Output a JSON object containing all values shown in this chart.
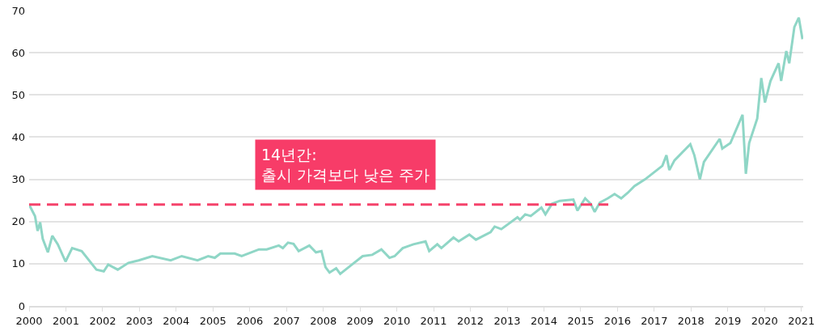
{
  "chart_data": {
    "type": "line",
    "xlim": [
      2000,
      2021.05
    ],
    "xticks": [
      2000,
      2001,
      2002,
      2003,
      2004,
      2005,
      2006,
      2007,
      2008,
      2009,
      2010,
      2011,
      2012,
      2013,
      2014,
      2015,
      2016,
      2017,
      2018,
      2019,
      2020,
      2021
    ],
    "ylim": [
      0,
      70
    ],
    "yticks": [
      0,
      10,
      20,
      30,
      40,
      50,
      60,
      70
    ],
    "grid": "y",
    "annotations": [
      "14년간:\n출시 가격보다 낮은 주가"
    ],
    "series": [
      {
        "color": "#8fd6c6",
        "line_style": "solid",
        "x": [
          2000,
          2000.16,
          2000.23,
          2000.3,
          2000.37,
          2000.51,
          2000.63,
          2000.78,
          2000.99,
          2001.17,
          2001.43,
          2001.83,
          2002.03,
          2002.15,
          2002.41,
          2002.7,
          2002.98,
          2003.35,
          2003.85,
          2004.15,
          2004.58,
          2004.87,
          2005.05,
          2005.2,
          2005.59,
          2005.78,
          2006.25,
          2006.46,
          2006.79,
          2006.9,
          2007.04,
          2007.19,
          2007.33,
          2007.62,
          2007.8,
          2007.95,
          2008.06,
          2008.17,
          2008.35,
          2008.46,
          2008.78,
          2009.07,
          2009.33,
          2009.58,
          2009.8,
          2009.94,
          2010.16,
          2010.45,
          2010.78,
          2010.88,
          2011.1,
          2011.21,
          2011.54,
          2011.68,
          2011.97,
          2012.15,
          2012.55,
          2012.66,
          2012.84,
          2013.28,
          2013.35,
          2013.49,
          2013.64,
          2013.93,
          2014.04,
          2014.22,
          2014.43,
          2014.8,
          2014.91,
          2015.12,
          2015.27,
          2015.38,
          2015.52,
          2015.74,
          2015.92,
          2016.1,
          2016.28,
          2016.46,
          2016.75,
          2017.22,
          2017.33,
          2017.41,
          2017.55,
          2017.98,
          2018.09,
          2018.24,
          2018.35,
          2018.78,
          2018.85,
          2019.07,
          2019.4,
          2019.49,
          2019.58,
          2019.8,
          2019.91,
          2020.01,
          2020.16,
          2020.38,
          2020.45,
          2020.59,
          2020.67,
          2020.81,
          2020.93,
          2021.03
        ],
        "values": [
          24,
          21.3,
          17.8,
          19.8,
          15.9,
          12.7,
          16.6,
          14.6,
          10.5,
          13.7,
          13,
          8.6,
          8.2,
          9.8,
          8.6,
          10.2,
          10.8,
          11.8,
          10.8,
          11.8,
          10.8,
          11.8,
          11.4,
          12.4,
          12.4,
          11.8,
          13.4,
          13.4,
          14.3,
          13.7,
          15,
          14.7,
          13,
          14.3,
          12.7,
          13,
          9.2,
          7.9,
          8.9,
          7.6,
          9.8,
          11.8,
          12.1,
          13.4,
          11.4,
          11.8,
          13.7,
          14.6,
          15.3,
          13,
          14.6,
          13.7,
          16.2,
          15.3,
          16.9,
          15.7,
          17.5,
          18.8,
          18.2,
          21,
          20.4,
          21.7,
          21.3,
          23.3,
          21.7,
          24.2,
          24.9,
          25.2,
          22.6,
          25.5,
          24.2,
          22.3,
          24.5,
          25.5,
          26.5,
          25.5,
          26.8,
          28.4,
          30,
          33.2,
          35.7,
          32.2,
          34.5,
          38.3,
          35.7,
          30,
          34.1,
          39.6,
          37.3,
          38.6,
          45.3,
          31.3,
          38.6,
          44.4,
          54,
          48.2,
          53.3,
          57.5,
          53.3,
          60.4,
          57.5,
          66.1,
          68.3,
          63.2
        ]
      },
      {
        "color": "#f5436b",
        "line_style": "dashed",
        "x": [
          2000,
          2015.75
        ],
        "values": [
          24,
          24
        ]
      }
    ]
  }
}
